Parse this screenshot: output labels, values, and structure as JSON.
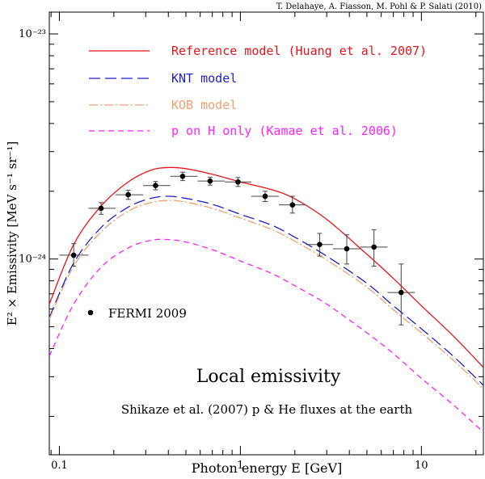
{
  "credit": "T. Delahaye, A. Fiasson, M. Pohl & P. Salati (2010)",
  "colors": {
    "reference": "#e8141b",
    "knt": "#1e1ec8",
    "kob": "#f0a070",
    "kamae": "#ff22ff",
    "fermi": "#000000"
  },
  "chart_data": {
    "type": "line",
    "title": "",
    "xlabel": "Photon energy E  [GeV]",
    "ylabel": "E² × Emissivity [MeV s⁻¹ sr⁻¹]",
    "xscale": "log",
    "yscale": "log",
    "xlim": [
      0.088,
      22
    ],
    "ylim": [
      1.35e-25,
      1.25e-23
    ],
    "x_ticks": [
      {
        "value": 0.1,
        "label": "0.1"
      },
      {
        "value": 1,
        "label": "1"
      },
      {
        "value": 10,
        "label": "10"
      }
    ],
    "y_ticks": [
      {
        "value": 1e-24,
        "label": "10⁻²⁴"
      },
      {
        "value": 1e-23,
        "label": "10⁻²³"
      }
    ],
    "legend_position": "top-left",
    "series": [
      {
        "key": "reference",
        "name": "Reference model (Huang et al. 2007)",
        "style": "solid",
        "x": [
          0.088,
          0.12,
          0.17,
          0.24,
          0.32,
          0.4,
          0.5,
          0.7,
          1.0,
          1.5,
          2.0,
          3.0,
          5.0,
          7.0,
          10.0,
          15.0,
          22.0
        ],
        "y": [
          6.3e-25,
          1.16e-24,
          1.72e-24,
          2.2e-24,
          2.48e-24,
          2.55e-24,
          2.52e-24,
          2.38e-24,
          2.2e-24,
          2.03e-24,
          1.85e-24,
          1.5e-24,
          1.05e-24,
          8.2e-25,
          6.2e-25,
          4.55e-25,
          3.3e-25
        ]
      },
      {
        "key": "knt",
        "name": "KNT model",
        "style": "long-dash",
        "x": [
          0.088,
          0.12,
          0.17,
          0.24,
          0.32,
          0.4,
          0.5,
          0.7,
          1.0,
          1.5,
          2.0,
          3.0,
          5.0,
          7.0,
          10.0,
          15.0,
          22.0
        ],
        "y": [
          5.5e-25,
          9.6e-25,
          1.38e-24,
          1.7e-24,
          1.86e-24,
          1.9e-24,
          1.86e-24,
          1.75e-24,
          1.58e-24,
          1.41e-24,
          1.25e-24,
          1.03e-24,
          7.8e-25,
          6.2e-25,
          4.9e-25,
          3.7e-25,
          2.75e-25
        ]
      },
      {
        "key": "kob",
        "name": "KOB model",
        "style": "dash-dot",
        "x": [
          0.088,
          0.12,
          0.17,
          0.24,
          0.32,
          0.4,
          0.5,
          0.7,
          1.0,
          1.5,
          2.0,
          3.0,
          5.0,
          7.0,
          10.0,
          15.0,
          22.0
        ],
        "y": [
          5.4e-25,
          9.3e-25,
          1.32e-24,
          1.63e-24,
          1.78e-24,
          1.82e-24,
          1.79e-24,
          1.68e-24,
          1.52e-24,
          1.35e-24,
          1.2e-24,
          9.9e-25,
          7.5e-25,
          5.95e-25,
          4.7e-25,
          3.55e-25,
          2.65e-25
        ]
      },
      {
        "key": "kamae",
        "name": "p on H only (Kamae et al. 2006)",
        "style": "short-dash",
        "x": [
          0.088,
          0.12,
          0.17,
          0.24,
          0.32,
          0.4,
          0.5,
          0.7,
          1.0,
          1.5,
          2.0,
          3.0,
          5.0,
          7.0,
          10.0,
          15.0,
          22.0
        ],
        "y": [
          3.7e-25,
          6.3e-25,
          9.2e-25,
          1.12e-24,
          1.21e-24,
          1.22e-24,
          1.19e-24,
          1.1e-24,
          9.8e-25,
          8.6e-25,
          7.6e-25,
          6.3e-25,
          4.7e-25,
          3.8e-25,
          2.95e-25,
          2.25e-25,
          1.7e-25
        ]
      }
    ],
    "points": {
      "key": "fermi",
      "name": "FERMI 2009",
      "data": [
        {
          "x": 0.12,
          "y": 1.04e-24,
          "xlo": 0.1,
          "xhi": 0.145,
          "ylo": 9.3e-25,
          "yhi": 1.17e-24
        },
        {
          "x": 0.17,
          "y": 1.68e-24,
          "xlo": 0.145,
          "xhi": 0.205,
          "ylo": 1.58e-24,
          "yhi": 1.78e-24
        },
        {
          "x": 0.24,
          "y": 1.93e-24,
          "xlo": 0.205,
          "xhi": 0.29,
          "ylo": 1.84e-24,
          "yhi": 2.02e-24
        },
        {
          "x": 0.34,
          "y": 2.12e-24,
          "xlo": 0.29,
          "xhi": 0.41,
          "ylo": 2.03e-24,
          "yhi": 2.21e-24
        },
        {
          "x": 0.48,
          "y": 2.33e-24,
          "xlo": 0.41,
          "xhi": 0.58,
          "ylo": 2.23e-24,
          "yhi": 2.43e-24
        },
        {
          "x": 0.68,
          "y": 2.22e-24,
          "xlo": 0.58,
          "xhi": 0.82,
          "ylo": 2.13e-24,
          "yhi": 2.31e-24
        },
        {
          "x": 0.97,
          "y": 2.2e-24,
          "xlo": 0.82,
          "xhi": 1.15,
          "ylo": 2.1e-24,
          "yhi": 2.3e-24
        },
        {
          "x": 1.37,
          "y": 1.9e-24,
          "xlo": 1.15,
          "xhi": 1.63,
          "ylo": 1.8e-24,
          "yhi": 2e-24
        },
        {
          "x": 1.94,
          "y": 1.74e-24,
          "xlo": 1.63,
          "xhi": 2.3,
          "ylo": 1.6e-24,
          "yhi": 1.9e-24
        },
        {
          "x": 2.74,
          "y": 1.16e-24,
          "xlo": 2.3,
          "xhi": 3.25,
          "ylo": 1.03e-24,
          "yhi": 1.3e-24
        },
        {
          "x": 3.87,
          "y": 1.11e-24,
          "xlo": 3.25,
          "xhi": 4.6,
          "ylo": 9.5e-25,
          "yhi": 1.28e-24
        },
        {
          "x": 5.47,
          "y": 1.13e-24,
          "xlo": 4.6,
          "xhi": 6.5,
          "ylo": 9.3e-25,
          "yhi": 1.35e-24
        },
        {
          "x": 7.73,
          "y": 7.1e-25,
          "xlo": 6.5,
          "xhi": 9.2,
          "ylo": 5.1e-25,
          "yhi": 9.5e-25
        }
      ]
    }
  },
  "annotations": {
    "title_in_plot": "Local emissivity",
    "subtitle_in_plot": "Shikaze et al. (2007) p & He fluxes at the earth"
  }
}
